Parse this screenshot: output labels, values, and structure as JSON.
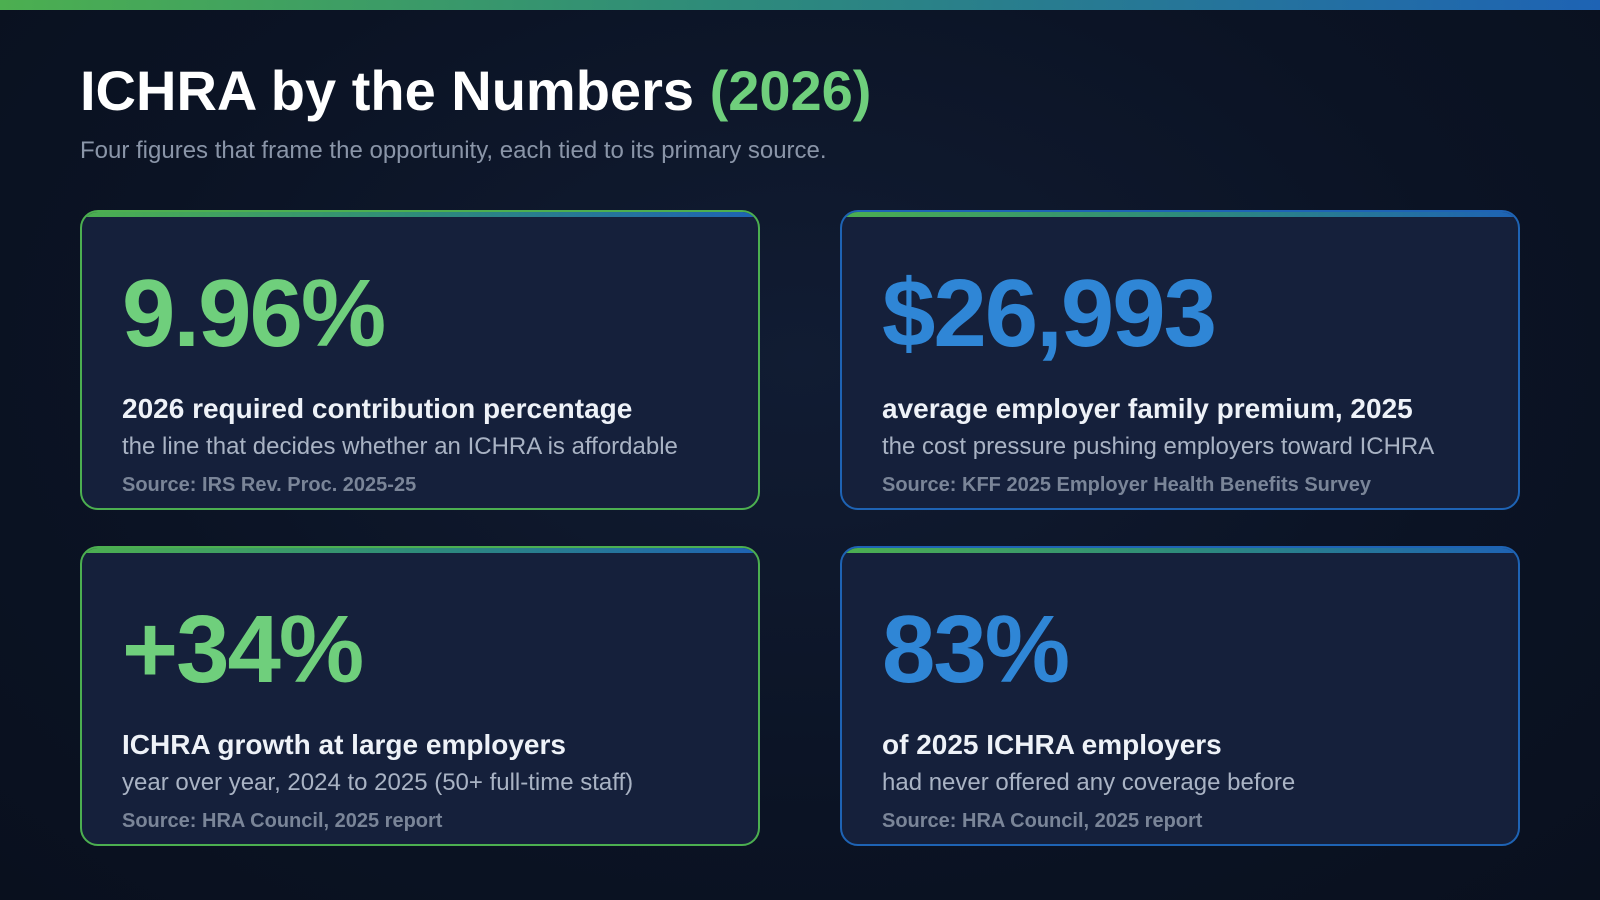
{
  "header": {
    "title": "ICHRA by the Numbers",
    "title_accent": "(2026)",
    "subtitle": "Four figures that frame the opportunity, each tied to its primary source."
  },
  "colors": {
    "green_accent": "#6fcf7c",
    "blue_accent": "#2f86d6",
    "card_background": "#15203b",
    "page_background": "#0b1324"
  },
  "cards": [
    {
      "value": "9.96%",
      "label": "2026 required contribution percentage",
      "description": "the line that decides whether an ICHRA is affordable",
      "source": "Source: IRS Rev. Proc. 2025-25",
      "color": "#6fcf7c"
    },
    {
      "value": "$26,993",
      "label": "average employer family premium, 2025",
      "description": "the cost pressure pushing employers toward ICHRA",
      "source": "Source: KFF 2025 Employer Health Benefits Survey",
      "color": "#2f86d6"
    },
    {
      "value": "+34%",
      "label": "ICHRA growth at large employers",
      "description": "year over year, 2024 to 2025 (50+ full-time staff)",
      "source": "Source: HRA Council, 2025 report",
      "color": "#6fcf7c"
    },
    {
      "value": "83%",
      "label": "of 2025 ICHRA employers",
      "description": "had never offered any coverage before",
      "source": "Source: HRA Council, 2025 report",
      "color": "#2f86d6"
    }
  ]
}
